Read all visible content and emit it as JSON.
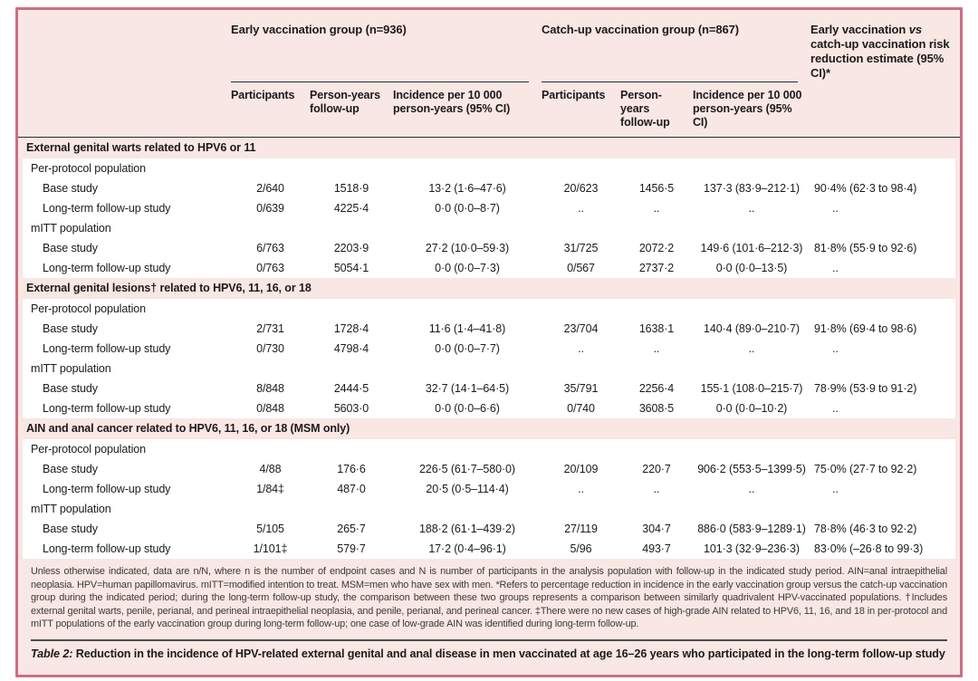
{
  "colors": {
    "card_bg": "#f8e7e3",
    "border": "#cc6e86",
    "row_bg": "#ffffff",
    "rule": "#2b2b2b",
    "caption_rule": "#4d4d4d"
  },
  "header": {
    "groups": [
      {
        "label": "Early vaccination group (n=936)"
      },
      {
        "label": "Catch-up vaccination group (n=867)"
      }
    ],
    "risk": {
      "pre": "Early vaccination ",
      "vs": "vs",
      "post": " catch-up vaccination risk reduction estimate (95% CI)*"
    },
    "subheaders": [
      "Participants",
      "Person-years follow-up",
      "Incidence per 10 000 person-years (95% CI)"
    ]
  },
  "sections": [
    {
      "title": "External genital warts related to HPV6 or 11",
      "subsections": [
        {
          "title": "Per-protocol population",
          "rows": [
            {
              "label": "Base study",
              "cells": [
                "2/640",
                "1518·9",
                "13·2 (1·6–47·6)",
                "20/623",
                "1456·5",
                "137·3 (83·9–212·1)",
                "90·4% (62·3 to 98·4)"
              ]
            },
            {
              "label": "Long-term follow-up study",
              "cells": [
                "0/639",
                "4225·4",
                "0·0 (0·0–8·7)",
                "..",
                "..",
                "..",
                ".."
              ]
            }
          ]
        },
        {
          "title": "mITT population",
          "rows": [
            {
              "label": "Base study",
              "cells": [
                "6/763",
                "2203·9",
                "27·2 (10·0–59·3)",
                "31/725",
                "2072·2",
                "149·6 (101·6–212·3)",
                "81·8% (55·9 to 92·6)"
              ]
            },
            {
              "label": "Long-term follow-up study",
              "cells": [
                "0/763",
                "5054·1",
                "0·0 (0·0–7·3)",
                "0/567",
                "2737·2",
                "0·0 (0·0–13·5)",
                ".."
              ]
            }
          ]
        }
      ]
    },
    {
      "title": "External genital lesions† related to HPV6, 11, 16, or 18",
      "subsections": [
        {
          "title": "Per-protocol population",
          "rows": [
            {
              "label": "Base study",
              "cells": [
                "2/731",
                "1728·4",
                "11·6 (1·4–41·8)",
                "23/704",
                "1638·1",
                "140·4 (89·0–210·7)",
                "91·8% (69·4 to 98·6)"
              ]
            },
            {
              "label": "Long-term follow-up study",
              "cells": [
                "0/730",
                "4798·4",
                "0·0 (0·0–7·7)",
                "..",
                "..",
                "..",
                ".."
              ]
            }
          ]
        },
        {
          "title": "mITT population",
          "rows": [
            {
              "label": "Base study",
              "cells": [
                "8/848",
                "2444·5",
                "32·7 (14·1–64·5)",
                "35/791",
                "2256·4",
                "155·1 (108·0–215·7)",
                "78·9% (53·9 to 91·2)"
              ]
            },
            {
              "label": "Long-term follow-up study",
              "cells": [
                "0/848",
                "5603·0",
                "0·0 (0·0–6·6)",
                "0/740",
                "3608·5",
                "0·0 (0·0–10·2)",
                ".."
              ]
            }
          ]
        }
      ]
    },
    {
      "title": "AIN and anal cancer related to HPV6, 11, 16, or 18 (MSM only)",
      "subsections": [
        {
          "title": "Per-protocol population",
          "rows": [
            {
              "label": "Base study",
              "cells": [
                "4/88",
                "176·6",
                "226·5 (61·7–580·0)",
                "20/109",
                "220·7",
                "906·2 (553·5–1399·5)",
                "75·0% (27·7 to 92·2)"
              ]
            },
            {
              "label": "Long-term follow-up study",
              "cells": [
                "1/84‡",
                "487·0",
                "20·5 (0·5–114·4)",
                "..",
                "..",
                "..",
                ".."
              ]
            }
          ]
        },
        {
          "title": "mITT population",
          "rows": [
            {
              "label": "Base study",
              "cells": [
                "5/105",
                "265·7",
                "188·2 (61·1–439·2)",
                "27/119",
                "304·7",
                "886·0 (583·9–1289·1)",
                "78·8% (46·3 to 92·2)"
              ]
            },
            {
              "label": "Long-term follow-up study",
              "cells": [
                "1/101‡",
                "579·7",
                "17·2 (0·4–96·1)",
                "5/96",
                "493·7",
                "101·3 (32·9–236·3)",
                "83·0% (–26·8 to 99·3)"
              ]
            }
          ]
        }
      ]
    }
  ],
  "footnote": "Unless otherwise indicated, data are n/N, where n is the number of endpoint cases and N is number of participants in the analysis population with follow-up in the indicated study period. AIN=anal intraepithelial neoplasia. HPV=human papillomavirus. mITT=modified intention to treat. MSM=men who have sex with men. *Refers to percentage reduction in incidence in the early vaccination group versus the catch-up vaccination group during the indicated period; during the long-term follow-up study, the comparison between these two groups represents a comparison between similarly quadrivalent HPV-vaccinated populations. †Includes external genital warts, penile, perianal, and perineal intraepithelial neoplasia, and penile, perianal, and perineal cancer. ‡There were no new cases of high-grade AIN related to HPV6, 11, 16, and 18 in per-protocol and mITT populations of the early vaccination group during long-term follow-up; one case of low-grade AIN was identified during long-term follow-up.",
  "caption": {
    "label": "Table 2:",
    "text": " Reduction in the incidence of HPV-related external genital and anal disease in men vaccinated at age 16–26 years who participated in the long-term follow-up study"
  }
}
